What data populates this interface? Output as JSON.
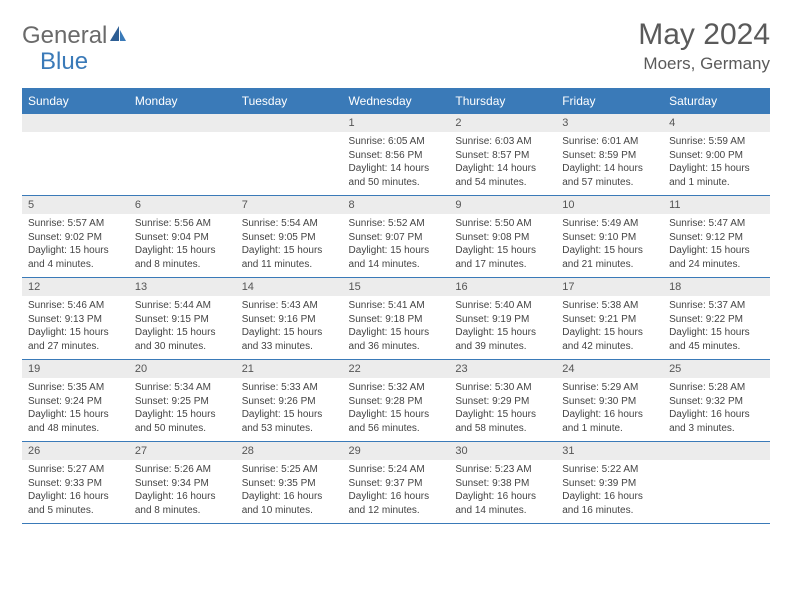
{
  "logo": {
    "part1": "General",
    "part2": "Blue"
  },
  "title": "May 2024",
  "location": "Moers, Germany",
  "colors": {
    "header_bg": "#3a7ab8",
    "header_text": "#ffffff",
    "daynum_bg": "#ececec",
    "text": "#444444",
    "rule": "#3a7ab8"
  },
  "daysOfWeek": [
    "Sunday",
    "Monday",
    "Tuesday",
    "Wednesday",
    "Thursday",
    "Friday",
    "Saturday"
  ],
  "weeks": [
    [
      {
        "n": "",
        "r": "",
        "s": "",
        "d": ""
      },
      {
        "n": "",
        "r": "",
        "s": "",
        "d": ""
      },
      {
        "n": "",
        "r": "",
        "s": "",
        "d": ""
      },
      {
        "n": "1",
        "r": "Sunrise: 6:05 AM",
        "s": "Sunset: 8:56 PM",
        "d": "Daylight: 14 hours and 50 minutes."
      },
      {
        "n": "2",
        "r": "Sunrise: 6:03 AM",
        "s": "Sunset: 8:57 PM",
        "d": "Daylight: 14 hours and 54 minutes."
      },
      {
        "n": "3",
        "r": "Sunrise: 6:01 AM",
        "s": "Sunset: 8:59 PM",
        "d": "Daylight: 14 hours and 57 minutes."
      },
      {
        "n": "4",
        "r": "Sunrise: 5:59 AM",
        "s": "Sunset: 9:00 PM",
        "d": "Daylight: 15 hours and 1 minute."
      }
    ],
    [
      {
        "n": "5",
        "r": "Sunrise: 5:57 AM",
        "s": "Sunset: 9:02 PM",
        "d": "Daylight: 15 hours and 4 minutes."
      },
      {
        "n": "6",
        "r": "Sunrise: 5:56 AM",
        "s": "Sunset: 9:04 PM",
        "d": "Daylight: 15 hours and 8 minutes."
      },
      {
        "n": "7",
        "r": "Sunrise: 5:54 AM",
        "s": "Sunset: 9:05 PM",
        "d": "Daylight: 15 hours and 11 minutes."
      },
      {
        "n": "8",
        "r": "Sunrise: 5:52 AM",
        "s": "Sunset: 9:07 PM",
        "d": "Daylight: 15 hours and 14 minutes."
      },
      {
        "n": "9",
        "r": "Sunrise: 5:50 AM",
        "s": "Sunset: 9:08 PM",
        "d": "Daylight: 15 hours and 17 minutes."
      },
      {
        "n": "10",
        "r": "Sunrise: 5:49 AM",
        "s": "Sunset: 9:10 PM",
        "d": "Daylight: 15 hours and 21 minutes."
      },
      {
        "n": "11",
        "r": "Sunrise: 5:47 AM",
        "s": "Sunset: 9:12 PM",
        "d": "Daylight: 15 hours and 24 minutes."
      }
    ],
    [
      {
        "n": "12",
        "r": "Sunrise: 5:46 AM",
        "s": "Sunset: 9:13 PM",
        "d": "Daylight: 15 hours and 27 minutes."
      },
      {
        "n": "13",
        "r": "Sunrise: 5:44 AM",
        "s": "Sunset: 9:15 PM",
        "d": "Daylight: 15 hours and 30 minutes."
      },
      {
        "n": "14",
        "r": "Sunrise: 5:43 AM",
        "s": "Sunset: 9:16 PM",
        "d": "Daylight: 15 hours and 33 minutes."
      },
      {
        "n": "15",
        "r": "Sunrise: 5:41 AM",
        "s": "Sunset: 9:18 PM",
        "d": "Daylight: 15 hours and 36 minutes."
      },
      {
        "n": "16",
        "r": "Sunrise: 5:40 AM",
        "s": "Sunset: 9:19 PM",
        "d": "Daylight: 15 hours and 39 minutes."
      },
      {
        "n": "17",
        "r": "Sunrise: 5:38 AM",
        "s": "Sunset: 9:21 PM",
        "d": "Daylight: 15 hours and 42 minutes."
      },
      {
        "n": "18",
        "r": "Sunrise: 5:37 AM",
        "s": "Sunset: 9:22 PM",
        "d": "Daylight: 15 hours and 45 minutes."
      }
    ],
    [
      {
        "n": "19",
        "r": "Sunrise: 5:35 AM",
        "s": "Sunset: 9:24 PM",
        "d": "Daylight: 15 hours and 48 minutes."
      },
      {
        "n": "20",
        "r": "Sunrise: 5:34 AM",
        "s": "Sunset: 9:25 PM",
        "d": "Daylight: 15 hours and 50 minutes."
      },
      {
        "n": "21",
        "r": "Sunrise: 5:33 AM",
        "s": "Sunset: 9:26 PM",
        "d": "Daylight: 15 hours and 53 minutes."
      },
      {
        "n": "22",
        "r": "Sunrise: 5:32 AM",
        "s": "Sunset: 9:28 PM",
        "d": "Daylight: 15 hours and 56 minutes."
      },
      {
        "n": "23",
        "r": "Sunrise: 5:30 AM",
        "s": "Sunset: 9:29 PM",
        "d": "Daylight: 15 hours and 58 minutes."
      },
      {
        "n": "24",
        "r": "Sunrise: 5:29 AM",
        "s": "Sunset: 9:30 PM",
        "d": "Daylight: 16 hours and 1 minute."
      },
      {
        "n": "25",
        "r": "Sunrise: 5:28 AM",
        "s": "Sunset: 9:32 PM",
        "d": "Daylight: 16 hours and 3 minutes."
      }
    ],
    [
      {
        "n": "26",
        "r": "Sunrise: 5:27 AM",
        "s": "Sunset: 9:33 PM",
        "d": "Daylight: 16 hours and 5 minutes."
      },
      {
        "n": "27",
        "r": "Sunrise: 5:26 AM",
        "s": "Sunset: 9:34 PM",
        "d": "Daylight: 16 hours and 8 minutes."
      },
      {
        "n": "28",
        "r": "Sunrise: 5:25 AM",
        "s": "Sunset: 9:35 PM",
        "d": "Daylight: 16 hours and 10 minutes."
      },
      {
        "n": "29",
        "r": "Sunrise: 5:24 AM",
        "s": "Sunset: 9:37 PM",
        "d": "Daylight: 16 hours and 12 minutes."
      },
      {
        "n": "30",
        "r": "Sunrise: 5:23 AM",
        "s": "Sunset: 9:38 PM",
        "d": "Daylight: 16 hours and 14 minutes."
      },
      {
        "n": "31",
        "r": "Sunrise: 5:22 AM",
        "s": "Sunset: 9:39 PM",
        "d": "Daylight: 16 hours and 16 minutes."
      },
      {
        "n": "",
        "r": "",
        "s": "",
        "d": ""
      }
    ]
  ]
}
